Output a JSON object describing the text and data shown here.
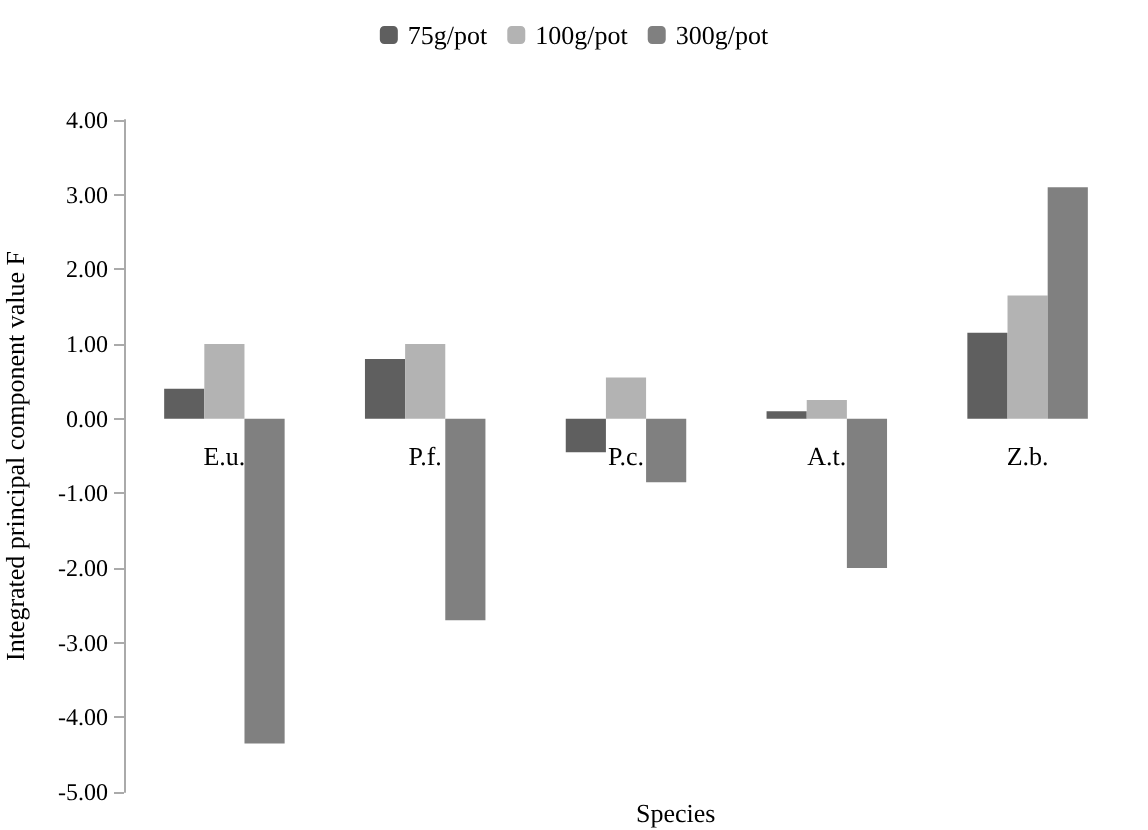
{
  "chart_data": {
    "type": "bar",
    "xlabel": "Species",
    "ylabel": "Integrated principal component value F",
    "categories": [
      "E.u.",
      "P.f.",
      "P.c.",
      "A.t.",
      "Z.b."
    ],
    "series": [
      {
        "name": "75g/pot",
        "color": "#5f5f5f",
        "values": [
          0.4,
          0.8,
          -0.45,
          0.1,
          1.15
        ]
      },
      {
        "name": "100g/pot",
        "color": "#b3b3b3",
        "values": [
          1.0,
          1.0,
          0.55,
          0.25,
          1.65
        ]
      },
      {
        "name": "300g/pot",
        "color": "#808080",
        "values": [
          -4.35,
          -2.7,
          -0.85,
          -2.0,
          3.1
        ]
      }
    ],
    "ylim": [
      -5,
      4
    ],
    "yticks": [
      {
        "value": -5,
        "label": "-5.00"
      },
      {
        "value": -4,
        "label": "-4.00"
      },
      {
        "value": -3,
        "label": "-3.00"
      },
      {
        "value": -2,
        "label": "-2.00"
      },
      {
        "value": -1,
        "label": "-1.00"
      },
      {
        "value": 0,
        "label": "0.00"
      },
      {
        "value": 1,
        "label": "1.00"
      },
      {
        "value": 2,
        "label": "2.00"
      },
      {
        "value": 3,
        "label": "3.00"
      },
      {
        "value": 4,
        "label": "4.00"
      }
    ],
    "grid": false,
    "legend": "top"
  }
}
